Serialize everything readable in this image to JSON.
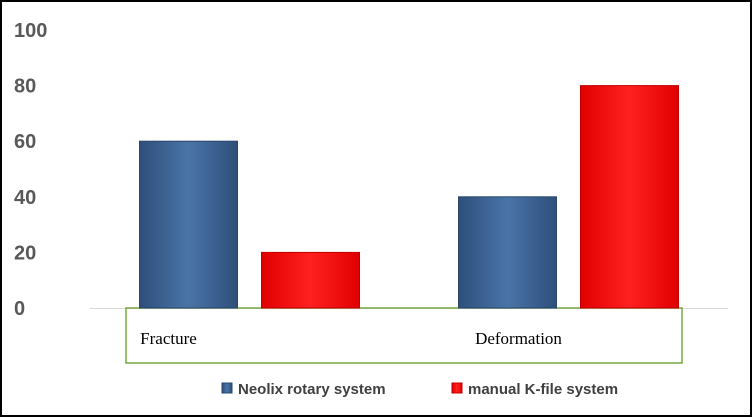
{
  "chart_data": {
    "type": "bar",
    "categories": [
      "Fracture",
      "Deformation"
    ],
    "series": [
      {
        "name": "Neolix rotary system",
        "values": [
          60,
          40
        ],
        "color": "#3a5f8f"
      },
      {
        "name": "manual K-file system",
        "values": [
          20,
          80
        ],
        "color": "#ff0000"
      }
    ],
    "y_ticks": [
      "0",
      "20",
      "40",
      "60",
      "80",
      "100"
    ],
    "ylim": [
      0,
      100
    ],
    "grid": false,
    "legend_position": "bottom",
    "category_box_color": "#77a83f"
  }
}
